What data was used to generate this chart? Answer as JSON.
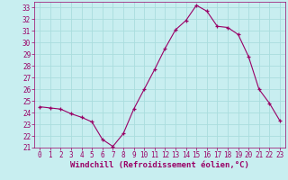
{
  "x": [
    0,
    1,
    2,
    3,
    4,
    5,
    6,
    7,
    8,
    9,
    10,
    11,
    12,
    13,
    14,
    15,
    16,
    17,
    18,
    19,
    20,
    21,
    22,
    23
  ],
  "y": [
    24.5,
    24.4,
    24.3,
    23.9,
    23.6,
    23.2,
    21.7,
    21.1,
    22.2,
    24.3,
    26.0,
    27.7,
    29.5,
    31.1,
    31.9,
    33.2,
    32.7,
    31.4,
    31.3,
    30.7,
    28.8,
    26.0,
    24.8,
    23.3
  ],
  "xlim": [
    -0.5,
    23.5
  ],
  "ylim": [
    21,
    33.5
  ],
  "yticks": [
    21,
    22,
    23,
    24,
    25,
    26,
    27,
    28,
    29,
    30,
    31,
    32,
    33
  ],
  "xticks": [
    0,
    1,
    2,
    3,
    4,
    5,
    6,
    7,
    8,
    9,
    10,
    11,
    12,
    13,
    14,
    15,
    16,
    17,
    18,
    19,
    20,
    21,
    22,
    23
  ],
  "xlabel": "Windchill (Refroidissement éolien,°C)",
  "line_color": "#990066",
  "marker_color": "#990066",
  "bg_color": "#c8eef0",
  "grid_color": "#aadddd",
  "label_fontsize": 6.5,
  "tick_fontsize": 5.5
}
